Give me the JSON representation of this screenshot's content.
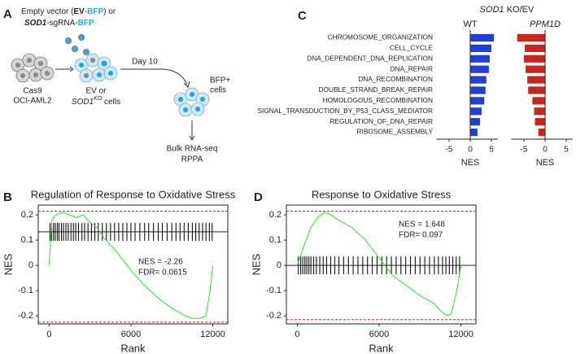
{
  "figure": {
    "panel_labels": [
      "A",
      "B",
      "C",
      "D"
    ]
  },
  "diagram": {
    "vector_line1": [
      {
        "text": "Empty vector ("
      },
      {
        "text": "EV",
        "bold": true
      },
      {
        "text": "-"
      },
      {
        "text": "BFP",
        "bold": true,
        "color": "#2aa8e0"
      },
      {
        "text": ") or"
      }
    ],
    "vector_line2": [
      {
        "text": "SOD1",
        "bold": true,
        "italic": true
      },
      {
        "text": "-sgRNA-"
      },
      {
        "text": "BFP",
        "bold": true,
        "color": "#2aa8e0"
      }
    ],
    "cells1": [
      "Cas9",
      "OCI-AML2"
    ],
    "cells2_line1": "EV or",
    "cells2_line2": [
      {
        "text": "SOD1",
        "italic": true
      },
      {
        "text": "KO",
        "sup": true
      },
      {
        "text": " cells"
      }
    ],
    "day": "Day 10",
    "bfp": [
      "BFP+",
      "cells"
    ],
    "readout": [
      "Bulk RNA-seq",
      "RPPA"
    ]
  },
  "chart_data": [
    {
      "type": "facet-bar",
      "title": [
        {
          "text": "SOD1",
          "italic": true
        },
        {
          "text": " KO/EV"
        }
      ],
      "categories": [
        "CHROMOSOME_ORGANIZATION",
        "CELL_CYCLE",
        "DNA_DEPENDENT_DNA_REPLICATION",
        "DNA_REPAIR",
        "DNA_RECOMBINATION",
        "DOUBLE_STRAND_BREAK_REPAIR",
        "HOMOLOGOUS_RECOMBINATION",
        "SIGNAL_TRANSDUCTION_BY_P53_CLASS_MEDIATOR",
        "REGULATION_OF_DNA_REPAIR",
        "RIBOSOME_ASSEMBLY"
      ],
      "series": [
        {
          "name": "WT",
          "italic": false,
          "color": "#1f3fd6",
          "values": [
            5.6,
            5.0,
            4.6,
            4.4,
            3.8,
            3.6,
            3.3,
            2.7,
            2.3,
            1.7
          ]
        },
        {
          "name": "PPM1D",
          "italic": true,
          "color": "#c8261a",
          "values": [
            -6.6,
            -4.8,
            -5.0,
            -4.6,
            -4.2,
            -4.0,
            -3.0,
            -2.6,
            -2.4,
            -1.6
          ]
        }
      ],
      "xlim": [
        -8,
        6.5
      ],
      "xticks": [
        -5,
        0,
        5
      ],
      "xlabel": "NES"
    },
    {
      "type": "gsea",
      "title": "Regulation of Response to Oxidative Stress",
      "xlabel": "Rank",
      "ylabel": "NES",
      "xlim": [
        -800,
        13100
      ],
      "ylim": [
        -0.232,
        0.239
      ],
      "xticks": [
        0,
        6000,
        12000
      ],
      "yticks": [
        0.2,
        0.1,
        0,
        -0.1,
        -0.2
      ],
      "color": "#33dd33",
      "x": [
        0,
        200,
        500,
        1000,
        1500,
        2000,
        2500,
        3000,
        3500,
        4000,
        5000,
        6000,
        7000,
        8000,
        9000,
        10000,
        10500,
        11000,
        11500,
        11800,
        12000
      ],
      "values": [
        0,
        0.18,
        0.2,
        0.21,
        0.2,
        0.19,
        0.2,
        0.17,
        0.15,
        0.11,
        0.05,
        -0.02,
        -0.08,
        -0.13,
        -0.17,
        -0.2,
        -0.21,
        -0.21,
        -0.2,
        -0.1,
        0
      ],
      "hlines": [
        0.215,
        -0.225
      ],
      "hline_color": "#e02020",
      "hit_line": 0.133,
      "hits": [
        60,
        180,
        320,
        450,
        600,
        720,
        900,
        1050,
        1230,
        1400,
        1600,
        1780,
        1950,
        2150,
        2400,
        2600,
        2850,
        3100,
        3350,
        3600,
        3900,
        4200,
        4500,
        4800,
        5100,
        5400,
        5700,
        6000,
        6300,
        6650,
        7000,
        7300,
        7650,
        8000,
        8300,
        8650,
        9000,
        9300,
        9600,
        9900,
        10200,
        10500,
        10750,
        11000,
        11250,
        11500,
        11750,
        11950
      ],
      "annotations": [
        "NES = -2.26",
        "FDR= 0.0615"
      ]
    },
    {
      "type": "gsea",
      "title": "Response to Oxidative Stress",
      "xlabel": "Rank",
      "ylabel": "NES",
      "xlim": [
        -800,
        13100
      ],
      "ylim": [
        -0.232,
        0.239
      ],
      "xticks": [
        0,
        6000,
        12000
      ],
      "yticks": [
        0.2,
        0.1,
        0,
        -0.1,
        -0.2
      ],
      "color": "#33dd33",
      "x": [
        0,
        500,
        1000,
        1500,
        2000,
        2500,
        3000,
        4000,
        5000,
        6000,
        7000,
        8000,
        9000,
        10000,
        10500,
        11000,
        11300,
        11700,
        12000
      ],
      "values": [
        0,
        0.08,
        0.15,
        0.19,
        0.21,
        0.2,
        0.18,
        0.15,
        0.1,
        0.03,
        -0.04,
        -0.08,
        -0.12,
        -0.15,
        -0.18,
        -0.2,
        -0.19,
        -0.1,
        0
      ],
      "hlines": [
        0.215,
        -0.215
      ],
      "hline_color": "#e02020",
      "hit_line": 0,
      "hits": [
        80,
        250,
        400,
        560,
        700,
        850,
        1000,
        1200,
        1400,
        1650,
        1900,
        2150,
        2450,
        2750,
        3050,
        3400,
        3750,
        4100,
        4450,
        4800,
        5150,
        5500,
        5850,
        6200,
        6550,
        6900,
        7250,
        7600,
        7950,
        8300,
        8650,
        9000,
        9350,
        9700,
        10050,
        10350,
        10650,
        10900,
        11150,
        11400,
        11650,
        11900
      ],
      "annotations": [
        "NES = 1.648",
        "FDR= 0.097"
      ]
    }
  ]
}
